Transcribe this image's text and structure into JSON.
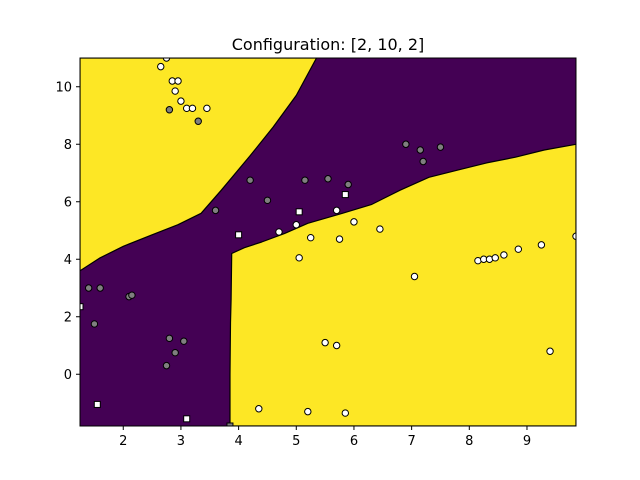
{
  "chart_data": {
    "type": "scatter",
    "title": "Configuration: [2, 10, 2]",
    "xlabel": "",
    "ylabel": "",
    "xlim": [
      1.25,
      9.85
    ],
    "ylim": [
      -1.8,
      11.0
    ],
    "xticks": [
      2,
      3,
      4,
      5,
      6,
      7,
      8,
      9
    ],
    "yticks": [
      0,
      2,
      4,
      6,
      8,
      10
    ],
    "grid": false,
    "legend": "none",
    "colors": {
      "region_class_0": "#440154",
      "region_class_1": "#fde725",
      "point_class_0_fill": "#7f7f7f",
      "point_class_1_fill": "#ffffff",
      "edge": "#000000"
    },
    "decision_regions": [
      {
        "class": 1,
        "polygon": [
          [
            1.25,
            11.0
          ],
          [
            3.6,
            11.0
          ],
          [
            3.35,
            10.4
          ],
          [
            3.05,
            9.7
          ],
          [
            2.7,
            8.9
          ],
          [
            2.3,
            8.0
          ],
          [
            1.8,
            7.2
          ],
          [
            1.25,
            6.6
          ]
        ]
      },
      {
        "class": 1,
        "polygon": [
          [
            1.25,
            6.2
          ],
          [
            1.4,
            6.6
          ],
          [
            1.65,
            7.0
          ],
          [
            2.0,
            7.6
          ],
          [
            2.4,
            8.3
          ],
          [
            2.8,
            9.1
          ],
          [
            3.2,
            9.9
          ],
          [
            3.65,
            11.0
          ],
          [
            4.0,
            11.0
          ],
          [
            3.8,
            10.3
          ],
          [
            3.5,
            9.6
          ],
          [
            3.2,
            8.9
          ],
          [
            2.9,
            8.1
          ],
          [
            2.6,
            7.3
          ],
          [
            2.3,
            6.5
          ],
          [
            2.2,
            6.0
          ]
        ]
      },
      {
        "class": 1,
        "polygon": [
          [
            1.25,
            3.6
          ],
          [
            1.6,
            4.05
          ],
          [
            2.0,
            4.45
          ],
          [
            2.5,
            4.85
          ],
          [
            2.95,
            5.2
          ],
          [
            3.35,
            5.6
          ],
          [
            3.7,
            6.4
          ],
          [
            4.2,
            7.6
          ],
          [
            4.6,
            8.6
          ],
          [
            5.0,
            9.7
          ],
          [
            5.35,
            11.0
          ],
          [
            1.25,
            11.0
          ]
        ]
      },
      {
        "class": 1,
        "polygon": [
          [
            3.85,
            -1.8
          ],
          [
            3.85,
            -1.3
          ],
          [
            3.85,
            0.0
          ],
          [
            3.86,
            1.8
          ],
          [
            3.87,
            2.6
          ],
          [
            3.88,
            4.2
          ],
          [
            4.1,
            4.4
          ],
          [
            4.4,
            4.6
          ],
          [
            4.8,
            4.9
          ],
          [
            5.2,
            5.25
          ],
          [
            5.8,
            5.6
          ],
          [
            6.3,
            5.9
          ],
          [
            6.8,
            6.4
          ],
          [
            7.3,
            6.85
          ],
          [
            7.8,
            7.1
          ],
          [
            8.3,
            7.35
          ],
          [
            8.8,
            7.55
          ],
          [
            9.3,
            7.8
          ],
          [
            9.85,
            8.0
          ],
          [
            9.85,
            -1.8
          ]
        ]
      }
    ],
    "series": [
      {
        "name": "",
        "class": 0,
        "marker": "circle",
        "x": [
          1.4,
          1.6,
          1.5,
          2.1,
          2.15,
          2.8,
          2.9,
          3.05,
          2.75,
          4.2,
          4.5,
          5.15,
          5.55,
          5.9,
          6.9,
          7.15,
          7.2,
          7.5,
          3.6,
          2.8,
          3.3
        ],
        "y": [
          3.0,
          3.0,
          1.75,
          2.7,
          2.75,
          1.25,
          0.75,
          1.15,
          0.3,
          6.75,
          6.05,
          6.75,
          6.8,
          6.6,
          8.0,
          7.8,
          7.4,
          7.9,
          5.7,
          9.2,
          8.8
        ]
      },
      {
        "name": "",
        "class": 1,
        "marker": "circle",
        "x": [
          2.65,
          2.75,
          2.85,
          2.95,
          2.9,
          3.0,
          3.1,
          3.2,
          3.45,
          4.7,
          5.0,
          5.25,
          5.7,
          5.75,
          6.0,
          6.45,
          7.05,
          8.15,
          8.25,
          8.35,
          8.45,
          8.6,
          8.85,
          9.25,
          9.85,
          9.4,
          5.05,
          5.5,
          5.7,
          4.35,
          5.2,
          5.85
        ],
        "y": [
          10.7,
          11.0,
          10.2,
          10.2,
          9.85,
          9.5,
          9.25,
          9.25,
          9.25,
          4.95,
          5.2,
          4.75,
          5.7,
          4.7,
          5.3,
          5.05,
          3.4,
          3.95,
          4.0,
          4.0,
          4.05,
          4.15,
          4.35,
          4.5,
          4.8,
          0.8,
          4.05,
          1.1,
          1.0,
          -1.2,
          -1.3,
          -1.35
        ]
      },
      {
        "name": "",
        "class": 0,
        "marker": "square",
        "x": [
          3.85
        ],
        "y": [
          -1.8
        ]
      },
      {
        "name": "",
        "class": 1,
        "marker": "square",
        "x": [
          1.25,
          1.55,
          3.1,
          4.0,
          5.05,
          5.85
        ],
        "y": [
          2.35,
          -1.05,
          -1.55,
          4.85,
          5.65,
          6.25
        ]
      }
    ]
  }
}
